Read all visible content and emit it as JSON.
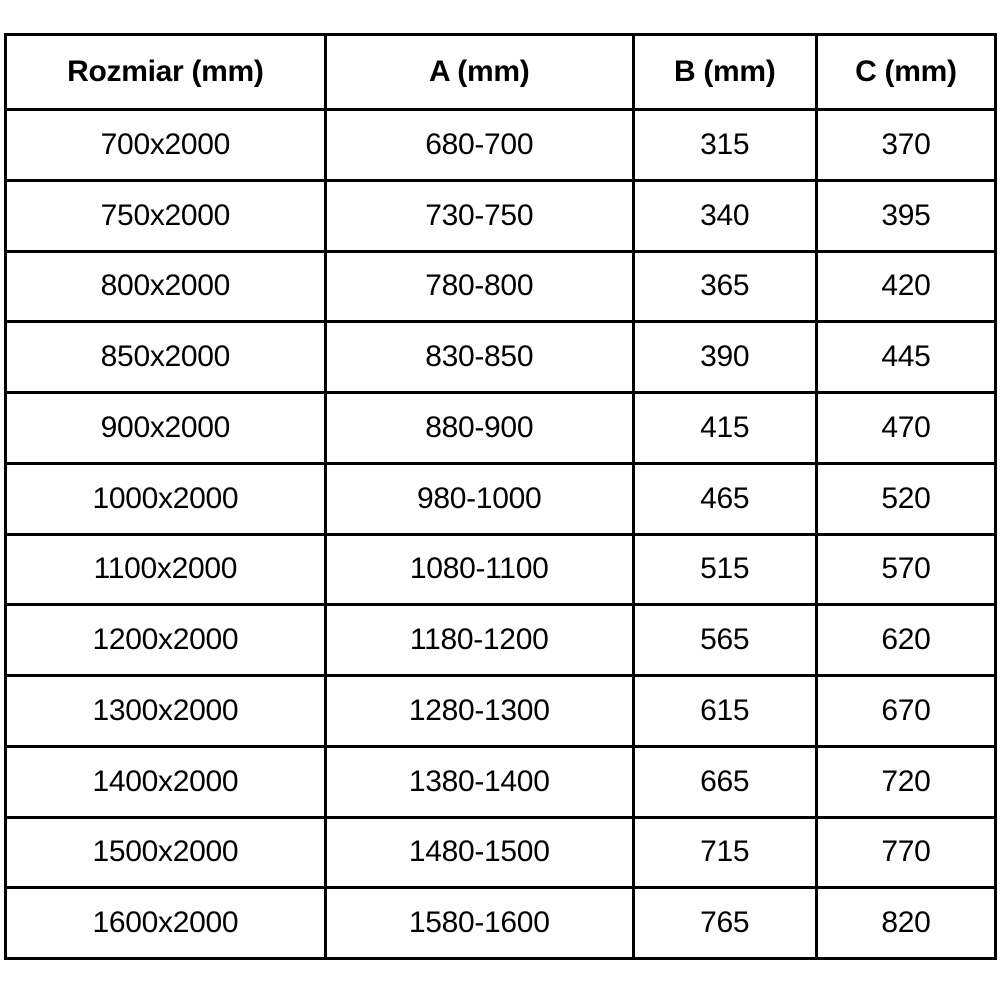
{
  "chart_data": {
    "type": "table",
    "title": "",
    "columns": [
      "Rozmiar (mm)",
      "A (mm)",
      "B (mm)",
      "C (mm)"
    ],
    "rows": [
      [
        "700x2000",
        "680-700",
        "315",
        "370"
      ],
      [
        "750x2000",
        "730-750",
        "340",
        "395"
      ],
      [
        "800x2000",
        "780-800",
        "365",
        "420"
      ],
      [
        "850x2000",
        "830-850",
        "390",
        "445"
      ],
      [
        "900x2000",
        "880-900",
        "415",
        "470"
      ],
      [
        "1000x2000",
        "980-1000",
        "465",
        "520"
      ],
      [
        "1100x2000",
        "1080-1100",
        "515",
        "570"
      ],
      [
        "1200x2000",
        "1180-1200",
        "565",
        "620"
      ],
      [
        "1300x2000",
        "1280-1300",
        "615",
        "670"
      ],
      [
        "1400x2000",
        "1380-1400",
        "665",
        "720"
      ],
      [
        "1500x2000",
        "1480-1500",
        "715",
        "770"
      ],
      [
        "1600x2000",
        "1580-1600",
        "765",
        "820"
      ]
    ],
    "layout": {
      "grid": true,
      "border_color": "#000000",
      "background": "#ffffff",
      "text_color": "#000000"
    }
  }
}
